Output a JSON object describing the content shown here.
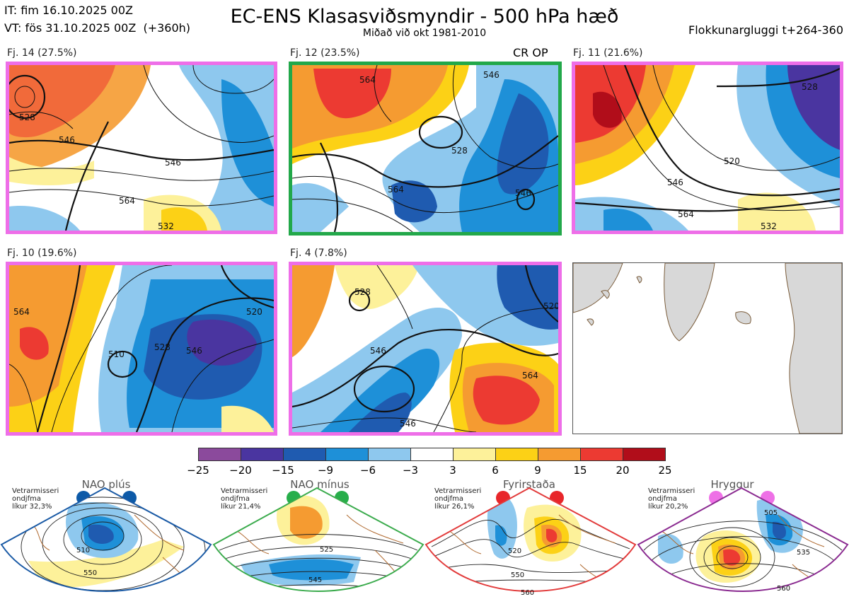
{
  "header": {
    "it_line": "IT: fim 16.10.2025 00Z",
    "vt_line": "VT: fös 31.10.2025 00Z  (+360h)",
    "title": "EC-ENS Klasasviðsmyndir - 500 hPa hæð",
    "subtitle": "Miðað við okt 1981-2010",
    "window": "Flokkunargluggi t+264-360"
  },
  "panels": [
    {
      "label": "Fj. 14 (27.5%)",
      "frame": "#ee6ee8",
      "badge": "",
      "contours": [
        "528",
        "546",
        "564",
        "546",
        "532"
      ]
    },
    {
      "label": "Fj. 12 (23.5%)",
      "frame": "#22a84a",
      "badge": "CR OP",
      "contours": [
        "564",
        "546",
        "528",
        "564",
        "546"
      ]
    },
    {
      "label": "Fj. 11 (21.6%)",
      "frame": "#ee6ee8",
      "badge": "",
      "contours": [
        "528",
        "546",
        "520",
        "564",
        "532"
      ]
    },
    {
      "label": "Fj. 10 (19.6%)",
      "frame": "#ee6ee8",
      "badge": "",
      "contours": [
        "564",
        "510",
        "528",
        "546",
        "520"
      ]
    },
    {
      "label": "Fj. 4 (7.8%)",
      "frame": "#ee6ee8",
      "badge": "",
      "contours": [
        "528",
        "546",
        "564",
        "520",
        "546"
      ]
    }
  ],
  "chart_data": {
    "type": "heatmap",
    "title": "EC-ENS Klasasviðsmyndir - 500 hPa hæð",
    "colorbar": {
      "bounds": [
        -25,
        -20,
        -15,
        -9,
        -6,
        -3,
        3,
        6,
        9,
        15,
        20,
        25
      ],
      "tick_labels": [
        "−25",
        "−20",
        "−15",
        "−9",
        "−6",
        "−3",
        "3",
        "6",
        "9",
        "15",
        "20",
        "25"
      ],
      "colors": [
        "#8b4a9c",
        "#4a35a0",
        "#1f5bb0",
        "#1e90d8",
        "#8ec8ee",
        "#ffffff",
        "#fdf19a",
        "#fcd116",
        "#f59b31",
        "#ec3a32",
        "#b10d1a"
      ]
    },
    "clusters": [
      {
        "name": "Fj. 14",
        "percent": 27.5
      },
      {
        "name": "Fj. 12",
        "percent": 23.5
      },
      {
        "name": "Fj. 11",
        "percent": 21.6
      },
      {
        "name": "Fj. 10",
        "percent": 19.6
      },
      {
        "name": "Fj. 4",
        "percent": 7.8
      }
    ]
  },
  "regimes": [
    {
      "name": "NAO plús",
      "line1": "Vetrarmisseri",
      "line2": "ondjfma",
      "line3": "líkur 32,3%",
      "color": "#1a5aa5",
      "dot": "#0d5aa8",
      "c1": "510",
      "c2": "550"
    },
    {
      "name": "NAO mínus",
      "line1": "Vetrarmisseri",
      "line2": "ondjfma",
      "line3": "líkur 21,4%",
      "color": "#3bab4d",
      "dot": "#27ae4a",
      "c1": "525",
      "c2": "545"
    },
    {
      "name": "Fyrirstaða",
      "line1": "Vetrarmisseri",
      "line2": "ondjfma",
      "line3": "líkur 26,1%",
      "color": "#e23b3b",
      "dot": "#e8262a",
      "c1": "520",
      "c2": "550"
    },
    {
      "name": "Hryggur",
      "line1": "Vetrarmisseri",
      "line2": "ondjfma",
      "line3": "líkur 20,2%",
      "color": "#8a2a90",
      "dot": "#ee70e6",
      "c1": "505",
      "c2": "535"
    }
  ]
}
